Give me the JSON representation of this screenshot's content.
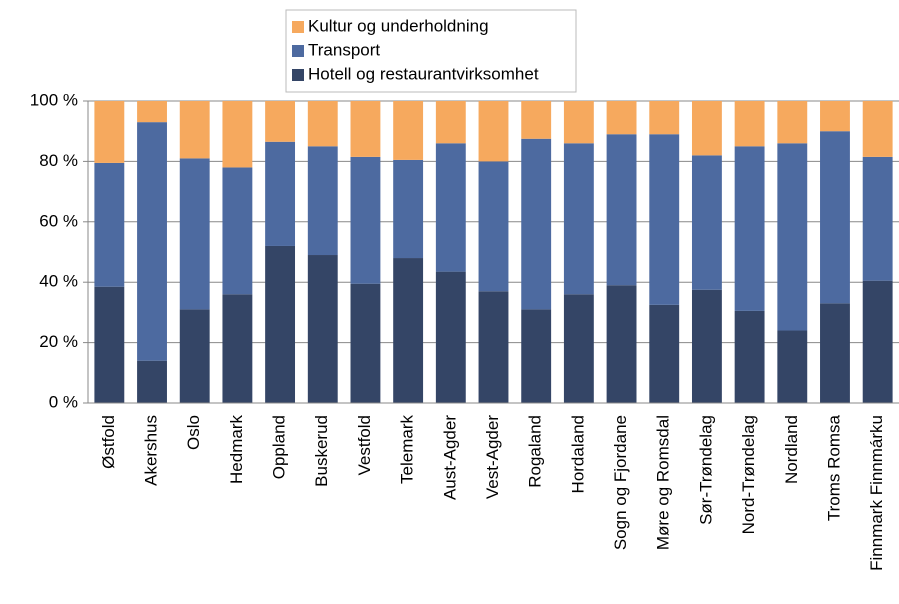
{
  "chart_data": {
    "type": "stacked_bar",
    "categories": [
      "Østfold",
      "Akershus",
      "Oslo",
      "Hedmark",
      "Oppland",
      "Buskerud",
      "Vestfold",
      "Telemark",
      "Aust-Agder",
      "Vest-Agder",
      "Rogaland",
      "Hordaland",
      "Sogn og Fjordane",
      "Møre og Romsdal",
      "Sør-Trøndelag",
      "Nord-Trøndelag",
      "Nordland",
      "Troms Romsa",
      "Finnmark Finnmárku"
    ],
    "series": [
      {
        "name": "Hotell og restaurantvirksomhet",
        "color": "#344566",
        "values": [
          38.5,
          14,
          31,
          36,
          52,
          49,
          39.5,
          48,
          43.5,
          37,
          31,
          36,
          39,
          32.5,
          37.5,
          30.5,
          24,
          33,
          40.5
        ]
      },
      {
        "name": "Transport",
        "color": "#4d6aa0",
        "values": [
          41,
          79,
          50,
          42,
          34.5,
          36,
          42,
          32.5,
          42.5,
          43,
          56.5,
          50,
          50,
          56.5,
          44.5,
          54.5,
          62,
          57,
          41
        ]
      },
      {
        "name": "Kultur og underholdning",
        "color": "#f6a95e",
        "values": [
          20.5,
          7,
          19,
          22,
          13.5,
          15,
          18.5,
          19.5,
          14,
          20,
          12.5,
          14,
          11,
          11,
          18,
          15,
          14,
          10,
          18.5
        ]
      }
    ],
    "ylim": [
      0,
      100
    ],
    "yticks": [
      {
        "value": 0,
        "label": "0 %"
      },
      {
        "value": 20,
        "label": "20 %"
      },
      {
        "value": 40,
        "label": "40 %"
      },
      {
        "value": 60,
        "label": "60 %"
      },
      {
        "value": 80,
        "label": "80 %"
      },
      {
        "value": 100,
        "label": "100 %"
      }
    ],
    "grid": true,
    "legend": "top"
  }
}
